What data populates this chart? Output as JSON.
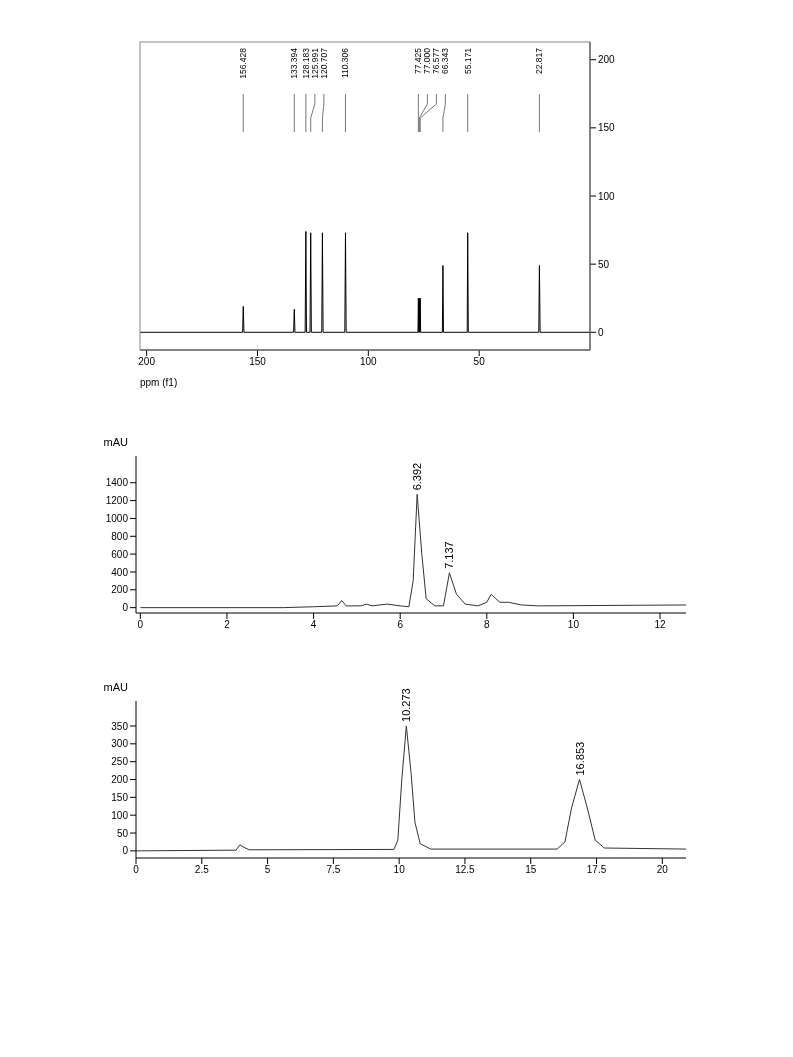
{
  "chart_data": [
    {
      "type": "line",
      "xlabel": "ppm (f1)",
      "xlim": [
        203,
        0
      ],
      "xticks": [
        200,
        150,
        100,
        50
      ],
      "ylim": [
        -13,
        213
      ],
      "yticks": [
        0,
        50,
        100,
        150,
        200
      ],
      "x": [
        203,
        156.7,
        156.428,
        156.1,
        133.7,
        133.394,
        133.1,
        128.5,
        128.183,
        127.9,
        126.3,
        125.991,
        125.7,
        121,
        120.707,
        120.4,
        110.6,
        110.306,
        110,
        77.6,
        77.425,
        77.25,
        77.15,
        77.0,
        76.85,
        76.75,
        76.577,
        76.4,
        66.6,
        66.343,
        66.1,
        55.4,
        55.171,
        54.9,
        23.1,
        22.817,
        22.5,
        0
      ],
      "series": [
        {
          "color": "#000000",
          "values": [
            0,
            0,
            19,
            0,
            0,
            17,
            0,
            0,
            74,
            0,
            0,
            73,
            0,
            0,
            73,
            0,
            0,
            73,
            0,
            0,
            25,
            0,
            0,
            25,
            0,
            0,
            25,
            0,
            0,
            49,
            0,
            0,
            73,
            0,
            0,
            49,
            0,
            0
          ]
        }
      ],
      "annotations": [
        "156.428",
        "133.394",
        "128.183",
        "125.991",
        "120.707",
        "110.306",
        "77.425",
        "77.000",
        "76.577",
        "66.343",
        "55.171",
        "22.817"
      ]
    },
    {
      "type": "line",
      "ylabel": "mAU",
      "xlim": [
        -0.1,
        12.6
      ],
      "xticks": [
        0,
        2,
        4,
        6,
        8,
        10,
        12
      ],
      "ylim": [
        -60,
        1700
      ],
      "yticks": [
        0,
        200,
        400,
        600,
        800,
        1000,
        1200,
        1400
      ],
      "x": [
        0,
        3.3,
        4,
        4.55,
        4.65,
        4.75,
        5.1,
        5.22,
        5.35,
        5.7,
        6.0,
        6.2,
        6.3,
        6.392,
        6.5,
        6.6,
        6.8,
        7.0,
        7.137,
        7.3,
        7.5,
        7.8,
        8.0,
        8.1,
        8.3,
        8.5,
        8.8,
        9.2,
        12.6
      ],
      "series": [
        {
          "color": "#333333",
          "values": [
            0,
            0,
            10,
            20,
            80,
            20,
            20,
            40,
            20,
            40,
            20,
            10,
            300,
            1270,
            600,
            100,
            20,
            20,
            390,
            150,
            40,
            20,
            60,
            150,
            60,
            60,
            30,
            20,
            30
          ]
        }
      ],
      "annotations": [
        {
          "text": "6.392",
          "x": 6.392,
          "y": 1270
        },
        {
          "text": "7.137",
          "x": 7.137,
          "y": 390
        }
      ]
    },
    {
      "type": "line",
      "ylabel": "mAU",
      "xlim": [
        0,
        20.9
      ],
      "xticks": [
        0,
        2.5,
        5,
        7.5,
        10,
        12.5,
        15,
        17.5,
        20
      ],
      "ylim": [
        -20,
        420
      ],
      "yticks": [
        0,
        50,
        100,
        150,
        200,
        250,
        300,
        350
      ],
      "x": [
        0,
        3.8,
        3.95,
        4.1,
        4.3,
        9.8,
        9.95,
        10.1,
        10.273,
        10.45,
        10.6,
        10.8,
        11.2,
        16.0,
        16.3,
        16.55,
        16.853,
        17.15,
        17.45,
        17.8,
        20.9
      ],
      "series": [
        {
          "color": "#333333",
          "values": [
            0,
            2,
            17,
            10,
            3,
            4,
            30,
            200,
            350,
            220,
            80,
            20,
            5,
            5,
            25,
            120,
            200,
            120,
            30,
            8,
            5
          ]
        }
      ],
      "annotations": [
        {
          "text": "10.273",
          "x": 10.273,
          "y": 350
        },
        {
          "text": "16.853",
          "x": 16.853,
          "y": 200
        }
      ]
    }
  ]
}
